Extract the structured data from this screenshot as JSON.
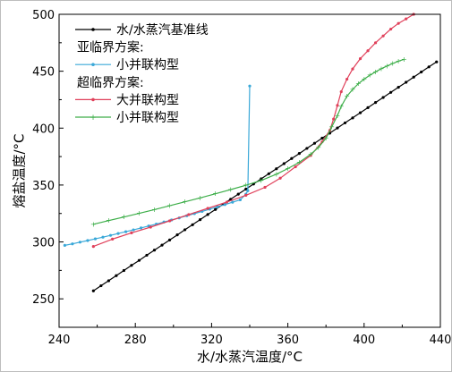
{
  "chart_data": {
    "type": "line",
    "xlabel": "水/水蒸汽温度/°C",
    "ylabel": "熔盐温度/°C",
    "xlim": [
      240,
      440
    ],
    "ylim": [
      225,
      500
    ],
    "x_ticks": [
      "240",
      "280",
      "320",
      "360",
      "400",
      "440"
    ],
    "y_ticks": [
      "250",
      "300",
      "350",
      "400",
      "450",
      "500"
    ],
    "legend_position": "top-left",
    "legend": [
      {
        "type": "entry",
        "series": 0,
        "label": "水/水蒸汽基准线"
      },
      {
        "type": "header",
        "label": "亚临界方案:"
      },
      {
        "type": "entry",
        "series": 1,
        "label": "小并联构型"
      },
      {
        "type": "header",
        "label": "超临界方案:"
      },
      {
        "type": "entry",
        "series": 2,
        "label": "大并联构型"
      },
      {
        "type": "entry",
        "series": 3,
        "label": "小并联构型"
      }
    ],
    "series": [
      {
        "name": "水/水蒸汽基准线",
        "color": "#000000",
        "x": [
          258,
          262,
          266,
          270,
          274,
          278,
          282,
          286,
          290,
          294,
          298,
          302,
          306,
          310,
          314,
          318,
          322,
          326,
          330,
          334,
          338,
          342,
          346,
          350,
          354,
          358,
          362,
          366,
          370,
          374,
          378,
          382,
          386,
          390,
          394,
          398,
          402,
          406,
          410,
          414,
          418,
          422,
          426,
          430,
          434,
          438
        ],
        "y": [
          257,
          261.5,
          265.9,
          270.4,
          274.9,
          279.4,
          283.8,
          288.3,
          292.8,
          297.2,
          301.7,
          306.2,
          310.7,
          315.1,
          319.6,
          324.1,
          328.5,
          333,
          337.5,
          342,
          346.4,
          350.9,
          355.4,
          359.9,
          364.3,
          368.8,
          373.3,
          377.7,
          382.2,
          386.7,
          391.2,
          395.6,
          400.1,
          404.6,
          409,
          413.5,
          418,
          422.5,
          426.9,
          431.4,
          435.9,
          440.3,
          444.8,
          449.3,
          453.8,
          458.2
        ]
      },
      {
        "name": "小并联构型",
        "color": "#3aa8d8",
        "x": [
          243,
          247,
          251,
          255,
          259,
          263,
          267,
          271,
          275,
          279,
          283,
          287,
          291,
          295,
          299,
          303,
          307,
          311,
          315,
          319,
          323,
          327,
          331,
          335,
          338,
          339,
          340
        ],
        "y": [
          297,
          298.3,
          299.8,
          301.2,
          302.7,
          304.2,
          305.8,
          307.4,
          309,
          310.6,
          312.3,
          314,
          315.7,
          317.5,
          319.3,
          321.1,
          323,
          324.9,
          326.8,
          328.8,
          330.8,
          332.8,
          334.9,
          337,
          342,
          345,
          437
        ]
      },
      {
        "name": "大并联构型",
        "color": "#e0405a",
        "x": [
          258,
          268,
          278,
          288,
          298,
          308,
          318,
          328,
          338,
          348,
          356,
          364,
          372,
          378,
          382,
          384,
          386,
          388,
          391,
          394,
          398,
          402,
          406,
          410,
          414,
          418,
          422,
          426
        ],
        "y": [
          296,
          302.5,
          308,
          313,
          318.5,
          324,
          329.5,
          335,
          341,
          348,
          356,
          366,
          376,
          388,
          398,
          408,
          420,
          432,
          443,
          452,
          461,
          468,
          475,
          481,
          487,
          492,
          496,
          500
        ]
      },
      {
        "name": "小并联构型",
        "color": "#3dae49",
        "x": [
          258,
          266,
          274,
          282,
          290,
          298,
          306,
          314,
          322,
          330,
          338,
          346,
          354,
          360,
          366,
          372,
          376,
          380,
          383,
          386,
          388,
          391,
          394,
          397,
          400,
          403,
          406,
          409,
          412,
          415,
          418,
          421
        ],
        "y": [
          315.5,
          318.7,
          321.9,
          325.1,
          328.4,
          331.8,
          335.2,
          338.7,
          342.3,
          346,
          349.8,
          354,
          359.5,
          364.5,
          370,
          377,
          383,
          391,
          401,
          411,
          419,
          428,
          434,
          439,
          443,
          446.5,
          449.5,
          452.2,
          454.6,
          456.8,
          458.8,
          460.5
        ]
      }
    ]
  }
}
